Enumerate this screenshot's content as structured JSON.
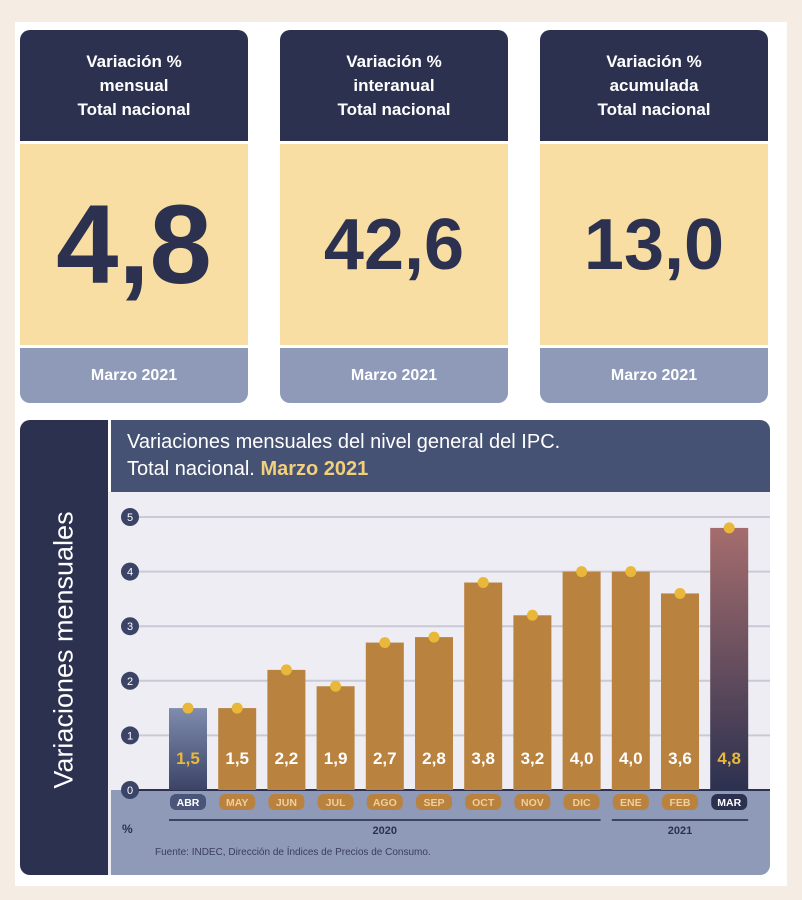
{
  "cards": [
    {
      "header": [
        "Variación %",
        "mensual",
        "Total nacional"
      ],
      "value": "4,8",
      "footer": "Marzo 2021"
    },
    {
      "header": [
        "Variación %",
        "interanual",
        "Total nacional"
      ],
      "value": "42,6",
      "footer": "Marzo 2021"
    },
    {
      "header": [
        "Variación %",
        "acumulada",
        "Total nacional"
      ],
      "value": "13,0",
      "footer": "Marzo 2021"
    }
  ],
  "side_label": "Variaciones mensuales",
  "chart_data": {
    "type": "bar",
    "title_line1": "Variaciones mensuales del nivel general del IPC.",
    "title_line2": "Total nacional.",
    "title_highlight": "Marzo 2021",
    "categories": [
      "ABR",
      "MAY",
      "JUN",
      "JUL",
      "AGO",
      "SEP",
      "OCT",
      "NOV",
      "DIC",
      "ENE",
      "FEB",
      "MAR"
    ],
    "values": [
      1.5,
      1.5,
      2.2,
      1.9,
      2.7,
      2.8,
      3.8,
      3.2,
      4.0,
      4.0,
      3.6,
      4.8
    ],
    "data_labels": [
      "1,5",
      "1,5",
      "2,2",
      "1,9",
      "2,7",
      "2,8",
      "3,8",
      "3,2",
      "4,0",
      "4,0",
      "3,6",
      "4,8"
    ],
    "year_groups": [
      {
        "label": "2020",
        "span": [
          0,
          8
        ]
      },
      {
        "label": "2021",
        "span": [
          9,
          11
        ]
      }
    ],
    "ylabel": "%",
    "ylim": [
      0,
      5
    ],
    "yticks": [
      0,
      1,
      2,
      3,
      4,
      5
    ],
    "grid": true,
    "colors": {
      "bar": "#b9823f",
      "first": "#7f8cae",
      "last_top": "#a56d6d",
      "last_bottom": "#2c3150",
      "dot": "#e9b73a",
      "label_highlight": "#e9b73a"
    },
    "source": "Fuente: INDEC, Dirección de Índices de Precios de Consumo."
  }
}
